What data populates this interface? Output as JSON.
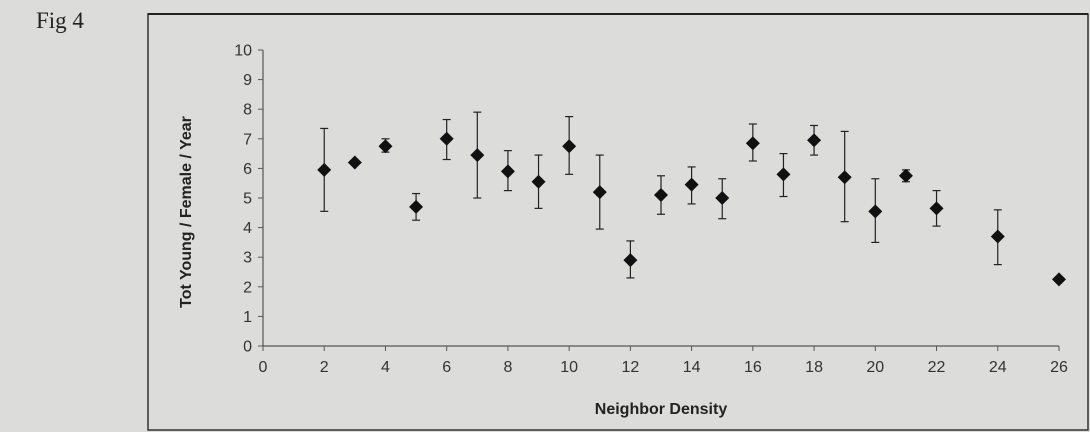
{
  "figure_label": "Fig 4",
  "chart_data": {
    "type": "scatter",
    "title": "",
    "xlabel": "Neighbor Density",
    "ylabel": "Tot Young / Female / Year",
    "xlim": [
      0,
      26
    ],
    "ylim": [
      0,
      10
    ],
    "x_ticks": [
      0,
      2,
      4,
      6,
      8,
      10,
      12,
      14,
      16,
      18,
      20,
      22,
      24,
      26
    ],
    "y_ticks": [
      0,
      1,
      2,
      3,
      4,
      5,
      6,
      7,
      8,
      9,
      10
    ],
    "grid": false,
    "legend": "none",
    "marker": "diamond",
    "colors": {
      "marker": "#111111",
      "error_bar": "#222222",
      "axis": "#555555",
      "background": "#dcdcdb",
      "frame": "#333333"
    },
    "points": [
      {
        "x": 2,
        "y": 5.95,
        "lo": 4.55,
        "hi": 7.35
      },
      {
        "x": 3,
        "y": 6.2,
        "lo": 6.2,
        "hi": 6.2
      },
      {
        "x": 4,
        "y": 6.75,
        "lo": 6.55,
        "hi": 7.0
      },
      {
        "x": 5,
        "y": 4.7,
        "lo": 4.25,
        "hi": 5.15
      },
      {
        "x": 6,
        "y": 7.0,
        "lo": 6.3,
        "hi": 7.65
      },
      {
        "x": 7,
        "y": 6.45,
        "lo": 5.0,
        "hi": 7.9
      },
      {
        "x": 8,
        "y": 5.9,
        "lo": 5.25,
        "hi": 6.6
      },
      {
        "x": 9,
        "y": 5.55,
        "lo": 4.65,
        "hi": 6.45
      },
      {
        "x": 10,
        "y": 6.75,
        "lo": 5.8,
        "hi": 7.75
      },
      {
        "x": 11,
        "y": 5.2,
        "lo": 3.95,
        "hi": 6.45
      },
      {
        "x": 12,
        "y": 2.9,
        "lo": 2.3,
        "hi": 3.55
      },
      {
        "x": 13,
        "y": 5.1,
        "lo": 4.45,
        "hi": 5.75
      },
      {
        "x": 14,
        "y": 5.45,
        "lo": 4.8,
        "hi": 6.05
      },
      {
        "x": 15,
        "y": 5.0,
        "lo": 4.3,
        "hi": 5.65
      },
      {
        "x": 16,
        "y": 6.85,
        "lo": 6.25,
        "hi": 7.5
      },
      {
        "x": 17,
        "y": 5.8,
        "lo": 5.05,
        "hi": 6.5
      },
      {
        "x": 18,
        "y": 6.95,
        "lo": 6.45,
        "hi": 7.45
      },
      {
        "x": 19,
        "y": 5.7,
        "lo": 4.2,
        "hi": 7.25
      },
      {
        "x": 20,
        "y": 4.55,
        "lo": 3.5,
        "hi": 5.65
      },
      {
        "x": 21,
        "y": 5.75,
        "lo": 5.55,
        "hi": 5.95
      },
      {
        "x": 22,
        "y": 4.65,
        "lo": 4.05,
        "hi": 5.25
      },
      {
        "x": 24,
        "y": 3.7,
        "lo": 2.75,
        "hi": 4.6
      },
      {
        "x": 26,
        "y": 2.25,
        "lo": 2.25,
        "hi": 2.25
      }
    ]
  }
}
